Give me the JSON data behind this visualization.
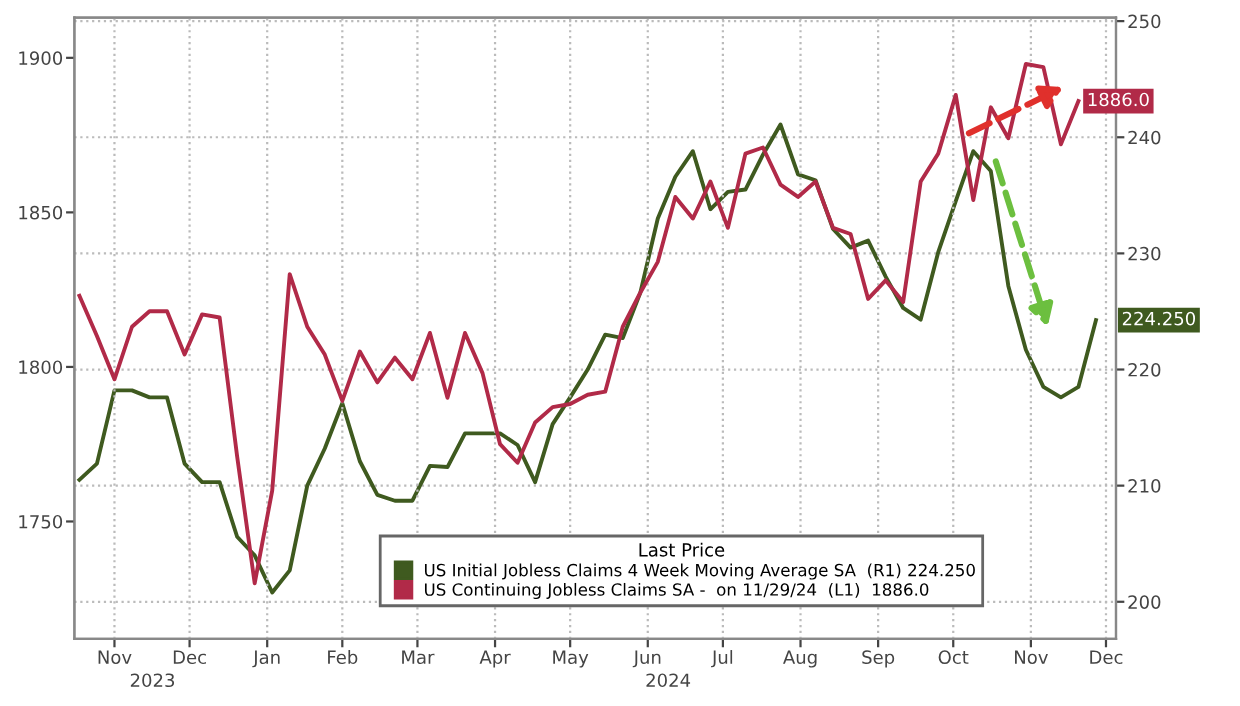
{
  "chart_data": {
    "type": "line",
    "x": [
      "2023-11-02",
      "2023-11-09",
      "2023-11-16",
      "2023-11-23",
      "2023-11-30",
      "2023-12-07",
      "2023-12-14",
      "2023-12-21",
      "2023-12-28",
      "2024-01-04",
      "2024-01-11",
      "2024-01-18",
      "2024-01-25",
      "2024-02-01",
      "2024-02-08",
      "2024-02-15",
      "2024-02-22",
      "2024-02-29",
      "2024-03-07",
      "2024-03-14",
      "2024-03-21",
      "2024-03-28",
      "2024-04-04",
      "2024-04-11",
      "2024-04-18",
      "2024-04-25",
      "2024-05-02",
      "2024-05-09",
      "2024-05-16",
      "2024-05-23",
      "2024-05-30",
      "2024-06-06",
      "2024-06-13",
      "2024-06-20",
      "2024-06-27",
      "2024-07-04",
      "2024-07-11",
      "2024-07-18",
      "2024-07-25",
      "2024-08-01",
      "2024-08-08",
      "2024-08-15",
      "2024-08-22",
      "2024-08-29",
      "2024-09-05",
      "2024-09-12",
      "2024-09-19",
      "2024-09-26",
      "2024-10-03",
      "2024-10-10",
      "2024-10-17",
      "2024-10-24",
      "2024-10-31",
      "2024-11-07",
      "2024-11-14",
      "2024-11-21",
      "2024-11-28",
      "2024-12-05",
      "2024-12-12"
    ],
    "series": [
      {
        "name": "US Initial Jobless Claims 4 Week Moving Average SA  (R1) 224.250",
        "color": "#3f5a1f",
        "axis": "y2",
        "value_labels": [
          null,
          null,
          null,
          null,
          null,
          null,
          null,
          null,
          null,
          null,
          null,
          null,
          null,
          null,
          null,
          null,
          null,
          null,
          null,
          null,
          null,
          null,
          null,
          null,
          null,
          null,
          null,
          null,
          null,
          null,
          null,
          null,
          null,
          null,
          null,
          null,
          null,
          null,
          null,
          null,
          null,
          null,
          null,
          null,
          null,
          null,
          null,
          null,
          null,
          null,
          null,
          null,
          null,
          null,
          null,
          null,
          null,
          null,
          "224.250"
        ],
        "values": [
          210.5,
          211.9,
          218.2,
          218.2,
          217.6,
          217.6,
          211.9,
          210.3,
          210.3,
          205.6,
          204.0,
          200.8,
          202.7,
          210.0,
          213.2,
          217.1,
          212.1,
          209.2,
          208.7,
          208.7,
          211.7,
          211.6,
          214.5,
          214.5,
          214.5,
          213.5,
          210.3,
          215.3,
          217.6,
          220.0,
          223.0,
          222.7,
          226.6,
          233.0,
          236.6,
          238.8,
          233.8,
          235.3,
          235.5,
          238.5,
          241.1,
          236.8,
          236.3,
          232.1,
          230.5,
          231.1,
          228.0,
          225.3,
          224.3,
          230.1,
          234.5,
          238.8,
          237.1,
          227.2,
          221.7,
          218.5,
          217.6,
          218.5,
          224.25
        ]
      },
      {
        "name": "US Continuing Jobless Claims SA -  on 11/29/24  (L1)  1886.0",
        "color": "#b12a48",
        "value_labels": [
          null,
          null,
          null,
          null,
          null,
          null,
          null,
          null,
          null,
          null,
          null,
          null,
          null,
          null,
          null,
          null,
          null,
          null,
          null,
          null,
          null,
          null,
          null,
          null,
          null,
          null,
          null,
          null,
          null,
          null,
          null,
          null,
          null,
          null,
          null,
          null,
          null,
          null,
          null,
          null,
          null,
          null,
          null,
          null,
          null,
          null,
          null,
          null,
          null,
          null,
          null,
          null,
          null,
          null,
          null,
          null,
          null,
          "1886.0",
          null
        ],
        "values": [
          1823,
          1810,
          1796,
          1813,
          1818,
          1818,
          1804,
          1817,
          1816,
          1771,
          1730,
          1760,
          1830,
          1813,
          1804,
          1789,
          1805,
          1795,
          1803,
          1796,
          1811,
          1790,
          1811,
          1798,
          1775,
          1769,
          1782,
          1787,
          1788,
          1791,
          1792,
          1813,
          1824,
          1834,
          1855,
          1848,
          1860,
          1845,
          1869,
          1871,
          1859,
          1855,
          1860,
          1845,
          1843,
          1822,
          1828,
          1821,
          1860,
          1869,
          1888,
          1854,
          1884,
          1874,
          1898,
          1897,
          1872,
          1886,
          null
        ]
      }
    ],
    "xlim": [
      "2023-10-31",
      "2024-12-20"
    ],
    "xticks": [
      {
        "value": "2023-11-16",
        "label": "Nov"
      },
      {
        "value": "2023-12-16",
        "label": "Dec"
      },
      {
        "value": "2024-01-16",
        "label": "Jan"
      },
      {
        "value": "2024-02-15",
        "label": "Feb"
      },
      {
        "value": "2024-03-16",
        "label": "Mar"
      },
      {
        "value": "2024-04-16",
        "label": "Apr"
      },
      {
        "value": "2024-05-16",
        "label": "May"
      },
      {
        "value": "2024-06-16",
        "label": "Jun"
      },
      {
        "value": "2024-07-16",
        "label": "Jul"
      },
      {
        "value": "2024-08-16",
        "label": "Aug"
      },
      {
        "value": "2024-09-16",
        "label": "Sep"
      },
      {
        "value": "2024-10-16",
        "label": "Oct"
      },
      {
        "value": "2024-11-16",
        "label": "Nov"
      },
      {
        "value": "2024-12-16",
        "label": "Dec"
      }
    ],
    "ylim": [
      1712,
      1913
    ],
    "yticks": [
      1750,
      1800,
      1850,
      1900
    ],
    "y2lim": [
      196.8,
      250.3
    ],
    "y2ticks": [
      200,
      210,
      220,
      230,
      240,
      250
    ],
    "legend_title": "Last Price",
    "legend": "bottom right",
    "grid": true,
    "line_style": "solid",
    "annotations": [
      "2023",
      "2024"
    ]
  }
}
